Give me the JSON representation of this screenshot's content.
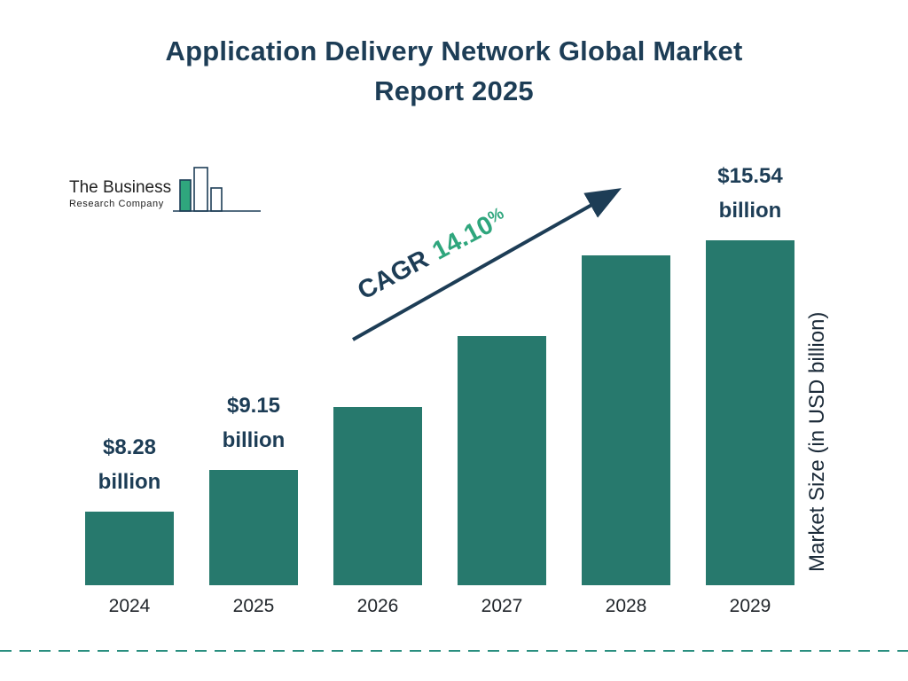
{
  "title": {
    "line1": "Application Delivery Network Global Market",
    "line2": "Report 2025"
  },
  "logo": {
    "name_line1": "The Business",
    "name_line2": "Research Company"
  },
  "cagr": {
    "label": "CAGR",
    "value": "14.10",
    "unit": "%"
  },
  "colors": {
    "bar": "#27796D",
    "title": "#1D3D56",
    "accent": "#2FA67D",
    "dash": "#2A8F80"
  },
  "chart_data": {
    "type": "bar",
    "title": "Application Delivery Network Global Market Report 2025",
    "categories": [
      "2024",
      "2025",
      "2026",
      "2027",
      "2028",
      "2029"
    ],
    "values": [
      8.28,
      9.15,
      10.44,
      11.91,
      13.59,
      15.54
    ],
    "labels": [
      {
        "value": "$8.28",
        "unit": "billion"
      },
      {
        "value": "$9.15",
        "unit": "billion"
      },
      null,
      null,
      null,
      {
        "value": "$15.54",
        "unit": "billion"
      }
    ],
    "xlabel": "",
    "ylabel": "Market Size (in USD billion)",
    "annotation": "CAGR 14.10%",
    "bar_color": "#27796D",
    "grid": false,
    "legend": false
  }
}
